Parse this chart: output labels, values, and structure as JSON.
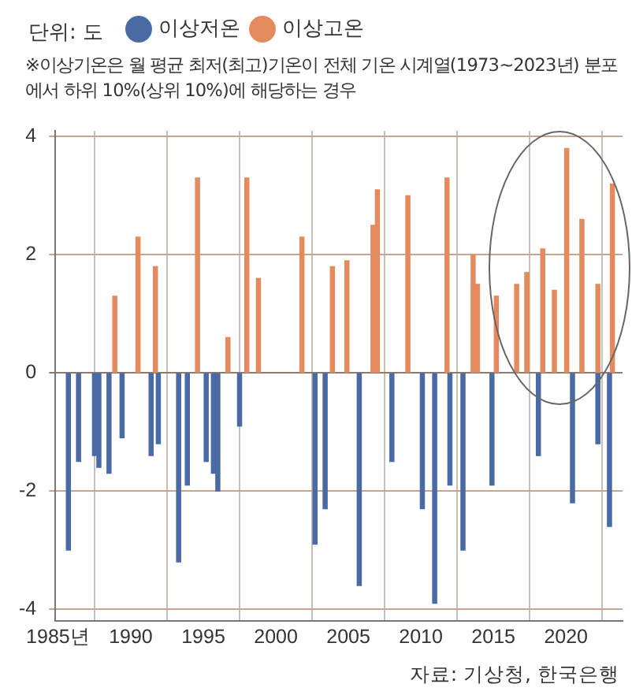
{
  "chart_data": {
    "type": "bar",
    "ylabel": "단위: 도",
    "subtitle": "※이상기온은 월 평균 최저(최고)기온이 전체 기온 시계열(1973~2023년) 분포에서 하위 10%(상위 10%)에 해당하는 경우",
    "annotations": [
      "자료: 기상청, 한국은행"
    ],
    "legend": "top left",
    "grid": true,
    "xlim": [
      1984.8,
      2023.9
    ],
    "xticks": [
      {
        "value": 1985,
        "label": "1985년"
      },
      1990,
      1995,
      2000,
      2005,
      2010,
      2015,
      2020
    ],
    "ylim": [
      -4.2,
      4.1
    ],
    "yticks": [
      -4,
      -2,
      0,
      2,
      4
    ],
    "series": [
      {
        "name": "이상저온",
        "color": "#4a6aa5",
        "x": [
          1985.7,
          1986.4,
          1987.5,
          1987.8,
          1988.5,
          1989.4,
          1991.4,
          1991.9,
          1993.3,
          1993.9,
          1995.2,
          1995.7,
          1996.0,
          1997.5,
          2002.7,
          2003.4,
          2005.75,
          2008.0,
          2010.1,
          2010.95,
          2012.0,
          2012.9,
          2014.9,
          2018.1,
          2020.45,
          2022.2,
          2023.0
        ],
        "values": [
          -3.0,
          -1.5,
          -1.4,
          -1.6,
          -1.7,
          -1.1,
          -1.4,
          -1.2,
          -3.2,
          -1.9,
          -1.5,
          -1.7,
          -2.0,
          -0.9,
          -2.9,
          -2.3,
          -3.6,
          -1.5,
          -2.3,
          -3.9,
          -1.9,
          -3.0,
          -1.9,
          -1.4,
          -2.2,
          -1.2,
          -2.6
        ]
      },
      {
        "name": "이상고온",
        "color": "#e38b5f",
        "x": [
          1988.9,
          1990.5,
          1991.7,
          1994.6,
          1996.7,
          1998.0,
          1998.8,
          2001.8,
          2003.9,
          2004.9,
          2006.7,
          2007.0,
          2009.1,
          2011.8,
          2013.6,
          2013.9,
          2015.2,
          2016.6,
          2017.3,
          2018.4,
          2019.2,
          2020.05,
          2021.1,
          2022.2,
          2023.2
        ],
        "values": [
          1.3,
          2.3,
          1.8,
          3.3,
          0.6,
          3.3,
          1.6,
          2.3,
          1.8,
          1.9,
          2.5,
          3.1,
          3.0,
          3.3,
          2.0,
          1.5,
          1.3,
          1.5,
          1.7,
          2.1,
          1.4,
          3.8,
          2.6,
          1.5,
          3.2
        ]
      }
    ]
  }
}
